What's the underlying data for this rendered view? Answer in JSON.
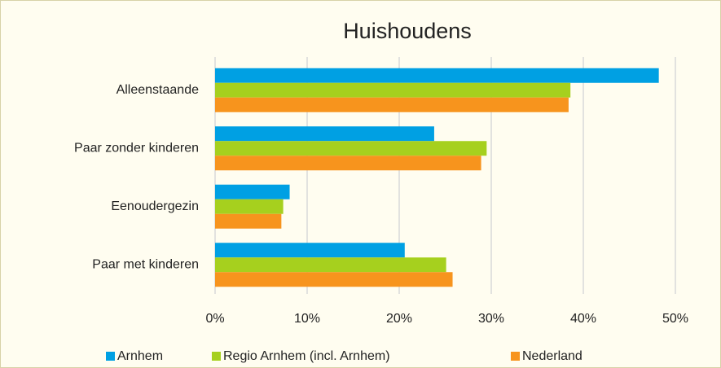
{
  "chart_data": {
    "type": "bar",
    "orientation": "horizontal",
    "title": "Huishoudens",
    "categories": [
      "Alleenstaande",
      "Paar zonder kinderen",
      "Eenoudergezin",
      "Paar met kinderen"
    ],
    "series": [
      {
        "name": "Arnhem",
        "color": "#00a0e3",
        "values": [
          48.2,
          23.8,
          8.1,
          20.6
        ]
      },
      {
        "name": "Regio Arnhem (incl. Arnhem)",
        "color": "#a6d01e",
        "values": [
          38.6,
          29.5,
          7.4,
          25.1
        ]
      },
      {
        "name": "Nederland",
        "color": "#f7941d",
        "values": [
          38.4,
          28.9,
          7.2,
          25.8
        ]
      }
    ],
    "xlim": [
      0,
      50
    ],
    "xticks": [
      {
        "value": 0,
        "label": "0%"
      },
      {
        "value": 10,
        "label": "10%"
      },
      {
        "value": 20,
        "label": "20%"
      },
      {
        "value": 30,
        "label": "30%"
      },
      {
        "value": 40,
        "label": "40%"
      },
      {
        "value": 50,
        "label": "50%"
      }
    ],
    "grid": true,
    "legend": "bottom"
  }
}
